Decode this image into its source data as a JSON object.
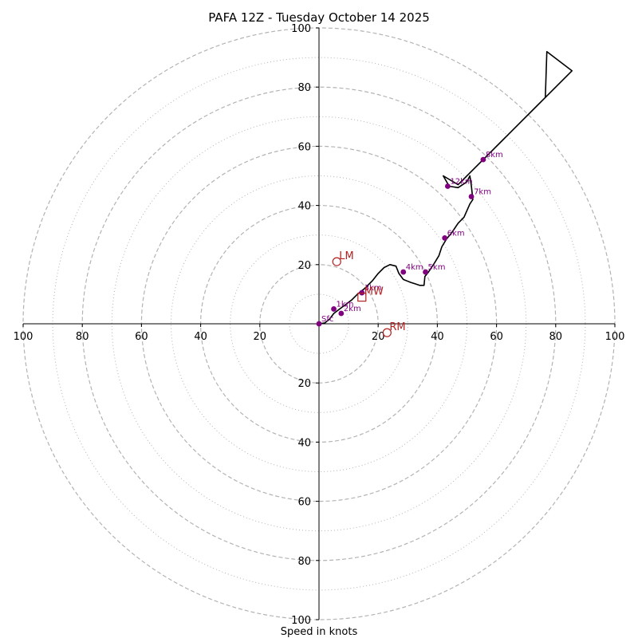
{
  "chart_data": {
    "type": "hodograph",
    "title": "PAFA 12Z - Tuesday October 14 2025",
    "xlabel": "Speed in knots",
    "range": [
      -100,
      100
    ],
    "tick_values": [
      -100,
      -80,
      -60,
      -40,
      -20,
      20,
      40,
      60,
      80,
      100
    ],
    "tick_labels": [
      "100",
      "80",
      "60",
      "40",
      "20",
      "20",
      "40",
      "60",
      "80",
      "100"
    ],
    "rings_dashed": [
      20,
      40,
      60,
      80,
      100
    ],
    "rings_dotted": [
      10,
      30,
      50,
      70,
      90
    ],
    "colors": {
      "trace": "#000000",
      "height": "#800080",
      "motion": "#b22222",
      "grid": "#b3b3b3"
    },
    "trace": [
      [
        0,
        0
      ],
      [
        2,
        0.3
      ],
      [
        3.5,
        1.5
      ],
      [
        5,
        3.5
      ],
      [
        7,
        5
      ],
      [
        9,
        6.5
      ],
      [
        11,
        8
      ],
      [
        13,
        10
      ],
      [
        15.5,
        12
      ],
      [
        18,
        14.5
      ],
      [
        20,
        17
      ],
      [
        22,
        19
      ],
      [
        24,
        20
      ],
      [
        26,
        19.5
      ],
      [
        27,
        17
      ],
      [
        28.5,
        15
      ],
      [
        31,
        14
      ],
      [
        32.5,
        13.5
      ],
      [
        34,
        13
      ],
      [
        35.5,
        13
      ],
      [
        35.8,
        16
      ],
      [
        37,
        17.5
      ],
      [
        39,
        20.5
      ],
      [
        40.5,
        23
      ],
      [
        41.5,
        26
      ],
      [
        43,
        28.5
      ],
      [
        45,
        31
      ],
      [
        47,
        34
      ],
      [
        49,
        36
      ],
      [
        51,
        40.5
      ],
      [
        52,
        42
      ],
      [
        51.5,
        46.5
      ],
      [
        51,
        50
      ],
      [
        50,
        48
      ],
      [
        47,
        46
      ],
      [
        44,
        46.5
      ],
      [
        42,
        50
      ],
      [
        47,
        47
      ],
      [
        52,
        52
      ],
      [
        56,
        56
      ],
      [
        62,
        62
      ],
      [
        68,
        68
      ],
      [
        74,
        74
      ],
      [
        80,
        80
      ],
      [
        85.5,
        85.5
      ],
      [
        77,
        92
      ],
      [
        76.5,
        76.5
      ]
    ],
    "height_markers": [
      {
        "label": "Sfc",
        "x": 0,
        "y": 0
      },
      {
        "label": "1km",
        "x": 5,
        "y": 5
      },
      {
        "label": "2km",
        "x": 7.5,
        "y": 3.5
      },
      {
        "label": "3km",
        "x": 14.5,
        "y": 10.5
      },
      {
        "label": "4km",
        "x": 28.5,
        "y": 17.5
      },
      {
        "label": "5km",
        "x": 36,
        "y": 17.5
      },
      {
        "label": "6km",
        "x": 42.5,
        "y": 29
      },
      {
        "label": "7km",
        "x": 51.5,
        "y": 43
      },
      {
        "label": "8km",
        "x": 55.5,
        "y": 55.5
      },
      {
        "label": "12km",
        "x": 43.5,
        "y": 46.5
      }
    ],
    "storm_motion": [
      {
        "label": "LM",
        "x": 6,
        "y": 21,
        "marker": "circle"
      },
      {
        "label": "RM",
        "x": 23,
        "y": -3,
        "marker": "circle"
      },
      {
        "label": "MW",
        "x": 14.5,
        "y": 9,
        "marker": "square"
      }
    ]
  }
}
